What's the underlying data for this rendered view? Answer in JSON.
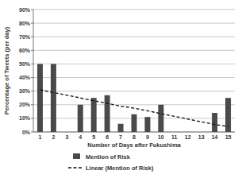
{
  "chart_data": {
    "type": "bar",
    "x_label": "Number of Days after Fukushima",
    "y_label": "Percentage of Tweets (per day)",
    "categories": [
      "1",
      "2",
      "3",
      "4",
      "5",
      "6",
      "7",
      "8",
      "9",
      "10",
      "11",
      "12",
      "13",
      "14",
      "15"
    ],
    "series": [
      {
        "name": "Mention of Risk",
        "type": "bar",
        "color": "#4a4a4a",
        "values": [
          50,
          50,
          0,
          20,
          25,
          27,
          6,
          13,
          11,
          20,
          0,
          0,
          0,
          14,
          25
        ]
      },
      {
        "name": "Linear (Mention of Risk)",
        "type": "line",
        "color": "#111111",
        "line_style": "dashed",
        "values": [
          31,
          29,
          27,
          25,
          23,
          21,
          19,
          17.5,
          15.5,
          13.5,
          11.5,
          9.5,
          7.5,
          5.5,
          4
        ]
      }
    ],
    "ylim": [
      0,
      90
    ],
    "yticks": [
      {
        "value": 0,
        "label": "0%"
      },
      {
        "value": 10,
        "label": "10%"
      },
      {
        "value": 20,
        "label": "20%"
      },
      {
        "value": 30,
        "label": "30%"
      },
      {
        "value": 40,
        "label": "40%"
      },
      {
        "value": 50,
        "label": "50%"
      },
      {
        "value": 60,
        "label": "60%"
      },
      {
        "value": 70,
        "label": "70%"
      },
      {
        "value": 80,
        "label": "80%"
      },
      {
        "value": 90,
        "label": "90%"
      }
    ],
    "grid": true,
    "legend": "bottom"
  }
}
